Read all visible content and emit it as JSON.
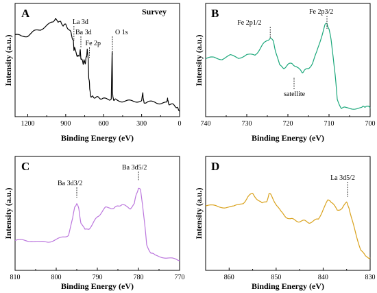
{
  "chart_data": [
    {
      "panel": "A",
      "type": "line",
      "color": "#000000",
      "title": "Survey",
      "xlabel": "Binding Energy (eV)",
      "ylabel": "Intensity (a.u.)",
      "xlim": [
        1300,
        0
      ],
      "ylim": [
        0,
        100
      ],
      "xticks": [
        1200,
        900,
        600,
        300,
        0
      ],
      "x": [
        1300,
        1250,
        1200,
        1150,
        1100,
        1050,
        1000,
        980,
        960,
        940,
        920,
        900,
        880,
        860,
        850,
        840,
        835,
        830,
        820,
        812,
        805,
        800,
        790,
        785,
        780,
        775,
        765,
        760,
        755,
        745,
        740,
        735,
        730,
        722,
        718,
        715,
        712,
        710,
        705,
        700,
        690,
        680,
        660,
        640,
        620,
        600,
        560,
        540,
        533,
        530,
        527,
        522,
        515,
        500,
        450,
        400,
        350,
        300,
        290,
        288,
        285,
        280,
        250,
        200,
        150,
        100,
        95,
        93,
        88,
        80,
        50,
        30,
        20,
        10,
        0
      ],
      "y": [
        76,
        74,
        75,
        79,
        81,
        85,
        88,
        93,
        87,
        90,
        84,
        86,
        82,
        78,
        74,
        70,
        60,
        64,
        58,
        56,
        54,
        55,
        56,
        60,
        53,
        51,
        49,
        47,
        50,
        48,
        52,
        54,
        62,
        50,
        34,
        30,
        28,
        22,
        16,
        15,
        14,
        14,
        14,
        13,
        13,
        12,
        12,
        12,
        58,
        20,
        13,
        12,
        11,
        11,
        10,
        10,
        10,
        10,
        18,
        14,
        10,
        9,
        9,
        9,
        8,
        8,
        14,
        10,
        8,
        7,
        6,
        5,
        3,
        2,
        1
      ],
      "annotations": [
        {
          "text": "La 3d",
          "x": 835
        },
        {
          "text": "Ba 3d",
          "x": 780
        },
        {
          "text": "Fe 2p",
          "x": 712
        },
        {
          "text": "O 1s",
          "x": 531
        }
      ]
    },
    {
      "panel": "B",
      "type": "line",
      "color": "#1aa77a",
      "xlabel": "Binding Energy (eV)",
      "ylabel": "Intensity (a.u.)",
      "xlim": [
        740,
        700
      ],
      "ylim": [
        0,
        100
      ],
      "xticks": [
        740,
        730,
        720,
        710,
        700
      ],
      "x": [
        740,
        738,
        736,
        734,
        732,
        730,
        728,
        727,
        726,
        725,
        724.3,
        723.5,
        723,
        722,
        721,
        720,
        719,
        718,
        717,
        716.5,
        716,
        715,
        714,
        713,
        712,
        711,
        710.5,
        710,
        709.5,
        709,
        708.5,
        708,
        707,
        706,
        704,
        702,
        701.5,
        701,
        700
      ],
      "y": [
        52,
        53,
        52,
        55,
        53,
        56,
        55,
        61,
        66,
        71,
        72,
        69,
        60,
        45,
        43,
        46,
        47,
        45,
        40,
        39,
        40,
        42,
        48,
        58,
        72,
        85,
        87,
        82,
        70,
        55,
        35,
        12,
        3,
        3,
        3,
        3,
        5,
        5,
        3
      ],
      "annotations": [
        {
          "text": "Fe 2p1/2",
          "x": 724.3
        },
        {
          "text": "Fe 2p3/2",
          "x": 710.5
        },
        {
          "text": "satellite",
          "x": 718.5
        }
      ]
    },
    {
      "panel": "C",
      "type": "line",
      "color": "#bb76dd",
      "xlabel": "Binding Energy (eV)",
      "ylabel": "Intensity (a.u.)",
      "xlim": [
        810,
        770
      ],
      "ylim": [
        0,
        100
      ],
      "xticks": [
        810,
        800,
        790,
        780,
        770
      ],
      "x": [
        810,
        808,
        806,
        804,
        802,
        800,
        798,
        797,
        796,
        795.5,
        795,
        794.5,
        794,
        793,
        792,
        791,
        790,
        789,
        788,
        787,
        786,
        785,
        784,
        783,
        782,
        781,
        780.5,
        780,
        779.5,
        779,
        778.5,
        778,
        777,
        776,
        774,
        772,
        770
      ],
      "y": [
        24,
        24,
        24,
        22,
        23,
        25,
        27,
        30,
        45,
        58,
        60,
        55,
        42,
        34,
        36,
        41,
        47,
        52,
        56,
        57,
        55,
        58,
        60,
        57,
        56,
        60,
        70,
        76,
        73,
        60,
        40,
        20,
        12,
        9,
        8,
        6,
        4
      ],
      "annotations": [
        {
          "text": "Ba 3d3/2",
          "x": 795
        },
        {
          "text": "Ba 3d5/2",
          "x": 780
        }
      ]
    },
    {
      "panel": "D",
      "type": "line",
      "color": "#d9a11b",
      "xlabel": "Binding Energy (eV)",
      "ylabel": "Intensity (a.u.)",
      "xlim": [
        865,
        830
      ],
      "ylim": [
        0,
        100
      ],
      "xticks": [
        860,
        850,
        840,
        830
      ],
      "x": [
        865,
        863,
        861,
        859,
        857,
        856,
        855,
        854,
        853,
        852,
        851.5,
        851,
        850,
        849,
        848,
        847,
        846,
        845,
        844,
        843,
        842,
        841,
        840,
        839,
        838.5,
        838,
        837,
        836,
        835,
        834.5,
        834,
        833,
        832,
        831,
        830
      ],
      "y": [
        58,
        58,
        57,
        57,
        61,
        67,
        70,
        65,
        60,
        63,
        70,
        68,
        60,
        52,
        48,
        45,
        44,
        43,
        43,
        42,
        43,
        45,
        55,
        63,
        64,
        60,
        54,
        56,
        61,
        57,
        46,
        30,
        15,
        8,
        7
      ],
      "annotations": [
        {
          "text": "La 3d5/2",
          "x": 834.8
        }
      ]
    }
  ]
}
